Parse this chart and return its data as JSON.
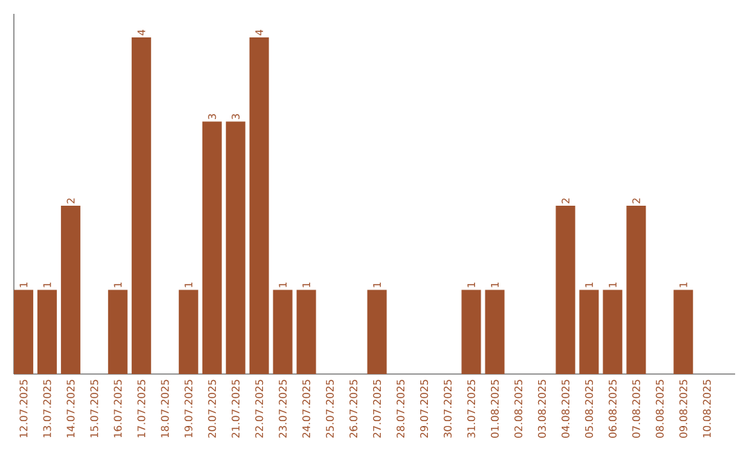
{
  "chart_data": {
    "type": "bar",
    "categories": [
      "12.07.2025",
      "13.07.2025",
      "14.07.2025",
      "15.07.2025",
      "16.07.2025",
      "17.07.2025",
      "18.07.2025",
      "19.07.2025",
      "20.07.2025",
      "21.07.2025",
      "22.07.2025",
      "23.07.2025",
      "24.07.2025",
      "25.07.2025",
      "26.07.2025",
      "27.07.2025",
      "28.07.2025",
      "29.07.2025",
      "30.07.2025",
      "31.07.2025",
      "01.08.2025",
      "02.08.2025",
      "03.08.2025",
      "04.08.2025",
      "05.08.2025",
      "06.08.2025",
      "07.08.2025",
      "08.08.2025",
      "09.08.2025",
      "10.08.2025"
    ],
    "values": [
      1,
      1,
      2,
      0,
      1,
      4,
      0,
      1,
      3,
      3,
      4,
      1,
      1,
      0,
      0,
      1,
      0,
      0,
      0,
      1,
      1,
      0,
      0,
      2,
      1,
      1,
      2,
      0,
      1,
      0
    ],
    "value_labels": [
      "1",
      "1",
      "2",
      null,
      "1",
      "4",
      null,
      "1",
      "3",
      "3",
      "4",
      "1",
      "1",
      null,
      null,
      "1",
      null,
      null,
      null,
      "1",
      "1",
      null,
      null,
      "2",
      "1",
      "1",
      "2",
      null,
      "1",
      null
    ],
    "color": "#a0522d",
    "tick_labels": "x"
  }
}
